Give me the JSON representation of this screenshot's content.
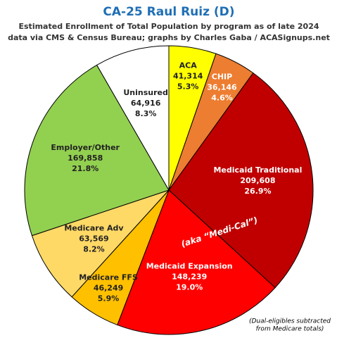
{
  "chart_data": {
    "type": "pie",
    "title": "CA-25 Raul Ruiz (D)",
    "subtitle": [
      "Estimated Enrollment of Total Population by program as of late 2024",
      "data via CMS & Census Bureau; graphs by Charles Gaba / ACASignups.net"
    ],
    "categories": [
      "ACA",
      "CHIP",
      "Medicaid Traditional",
      "Medicaid Expansion",
      "Medicare FFS",
      "Medicare Adv",
      "Employer/Other",
      "Uninsured"
    ],
    "values": [
      41314,
      36146,
      209608,
      148239,
      46249,
      63569,
      169858,
      64916
    ],
    "value_labels": [
      "41,314",
      "36,146",
      "209,608",
      "148,239",
      "46,249",
      "63,569",
      "169,858",
      "64,916"
    ],
    "percent_labels": [
      "5.3%",
      "4.6%",
      "26.9%",
      "19.0%",
      "5.9%",
      "8.2%",
      "21.8%",
      "8.3%"
    ],
    "colors": [
      "#ffff00",
      "#ed7d31",
      "#c00000",
      "#ff0000",
      "#ffc000",
      "#ffd966",
      "#92d050",
      "#ffffff"
    ],
    "annotations": [
      "(aka “Medi-Cal”)",
      "(Dual-eligibles subtracted",
      "from Medicare totals)"
    ]
  }
}
